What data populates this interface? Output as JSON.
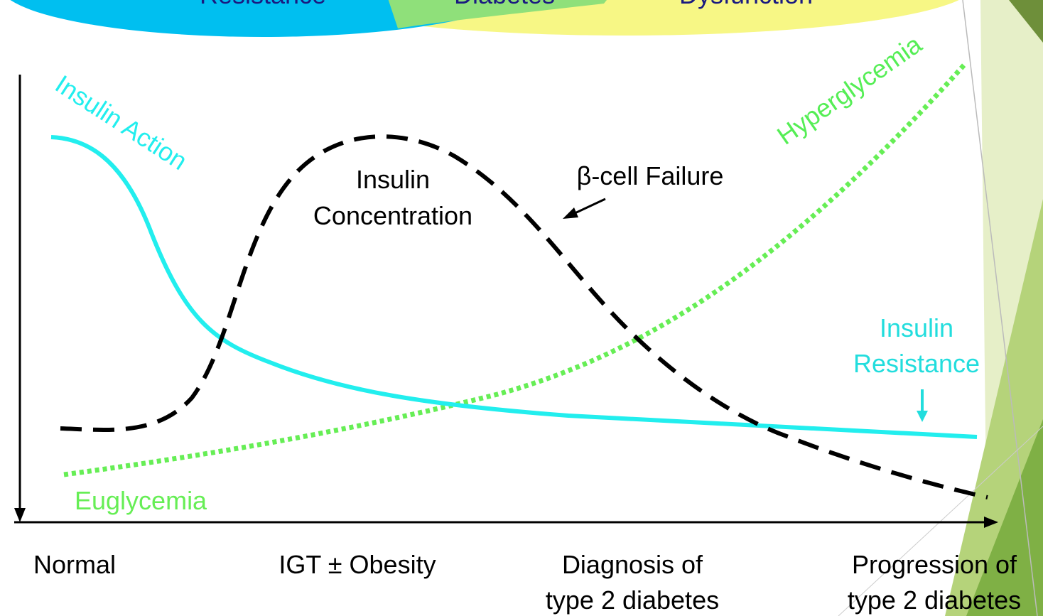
{
  "header": {
    "circles": [
      "Resistance",
      "Diabetes",
      "Dysfunction"
    ]
  },
  "curves": {
    "insulin_action": "Insulin Action",
    "hyperglycemia": "Hyperglycemia",
    "insulin_concentration": [
      "Insulin",
      "Concentration"
    ],
    "beta_cell": "β-cell  Failure",
    "insulin_resistance": [
      "Insulin",
      "Resistance"
    ],
    "euglycemia": "Euglycemia"
  },
  "stages": [
    [
      "Normal"
    ],
    [
      "IGT ± Obesity"
    ],
    [
      "Diagnosis of",
      "type 2 diabetes"
    ],
    [
      "Progression of",
      "type 2 diabetes"
    ]
  ]
}
